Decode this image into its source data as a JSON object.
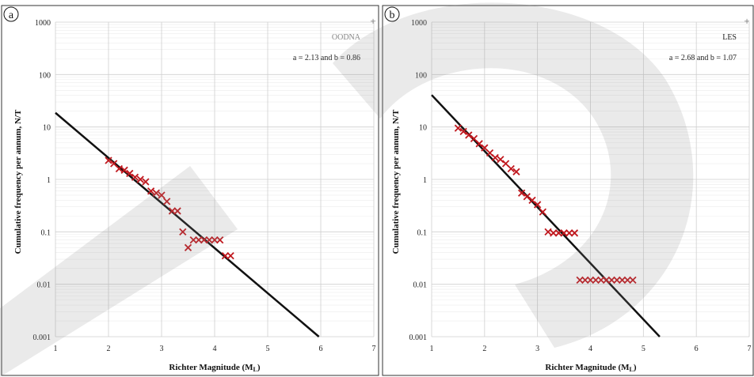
{
  "chart_data": [
    {
      "type": "scatter",
      "panel_label": "a",
      "site_label": "OODNA",
      "equation": "a = 2.13 and b = 0.86",
      "xlabel_main": "Richter Magnitude (M",
      "xlabel_sub": "L",
      "xlabel_end": ")",
      "ylabel": "Cumulative frequency per annum, N/T",
      "xlim": [
        1,
        7
      ],
      "ylim": [
        0.001,
        1000
      ],
      "yscale": "log",
      "x_ticks": [
        "1",
        "2",
        "3",
        "4",
        "5",
        "6",
        "7"
      ],
      "y_ticks": [
        "0.001",
        "0.01",
        "0.1",
        "1",
        "10",
        "100",
        "1000"
      ],
      "grid": true,
      "points_color": "#c0181e",
      "line_color": "#111111",
      "fit_line": {
        "a": 2.13,
        "b": 0.86
      },
      "points": [
        {
          "x": 2.0,
          "y": 2.3
        },
        {
          "x": 2.1,
          "y": 2.0
        },
        {
          "x": 2.2,
          "y": 1.6
        },
        {
          "x": 2.3,
          "y": 1.5
        },
        {
          "x": 2.4,
          "y": 1.3
        },
        {
          "x": 2.5,
          "y": 1.1
        },
        {
          "x": 2.6,
          "y": 1.0
        },
        {
          "x": 2.7,
          "y": 0.9
        },
        {
          "x": 2.8,
          "y": 0.6
        },
        {
          "x": 2.9,
          "y": 0.55
        },
        {
          "x": 3.0,
          "y": 0.5
        },
        {
          "x": 3.1,
          "y": 0.38
        },
        {
          "x": 3.2,
          "y": 0.25
        },
        {
          "x": 3.3,
          "y": 0.25
        },
        {
          "x": 3.4,
          "y": 0.1
        },
        {
          "x": 3.5,
          "y": 0.05
        },
        {
          "x": 3.6,
          "y": 0.07
        },
        {
          "x": 3.7,
          "y": 0.07
        },
        {
          "x": 3.8,
          "y": 0.07
        },
        {
          "x": 3.9,
          "y": 0.07
        },
        {
          "x": 4.0,
          "y": 0.07
        },
        {
          "x": 4.1,
          "y": 0.07
        },
        {
          "x": 4.2,
          "y": 0.035
        },
        {
          "x": 4.3,
          "y": 0.035
        }
      ]
    },
    {
      "type": "scatter",
      "panel_label": "b",
      "site_label": "LES",
      "equation": "a = 2.68 and b = 1.07",
      "xlabel_main": "Richter Magnitude (M",
      "xlabel_sub": "L",
      "xlabel_end": ")",
      "ylabel": "Cumulative frequency per annum, N/T",
      "xlim": [
        1,
        7
      ],
      "ylim": [
        0.001,
        1000
      ],
      "yscale": "log",
      "x_ticks": [
        "1",
        "2",
        "3",
        "4",
        "5",
        "6",
        "7"
      ],
      "y_ticks": [
        "0.001",
        "0.01",
        "0.1",
        "1",
        "10",
        "100",
        "1000"
      ],
      "grid": true,
      "points_color": "#c0181e",
      "line_color": "#111111",
      "fit_line": {
        "a": 2.68,
        "b": 1.07
      },
      "points": [
        {
          "x": 1.5,
          "y": 9.5
        },
        {
          "x": 1.6,
          "y": 8.2
        },
        {
          "x": 1.7,
          "y": 7.0
        },
        {
          "x": 1.8,
          "y": 6.0
        },
        {
          "x": 1.9,
          "y": 4.8
        },
        {
          "x": 2.0,
          "y": 4.0
        },
        {
          "x": 2.1,
          "y": 3.2
        },
        {
          "x": 2.2,
          "y": 2.6
        },
        {
          "x": 2.3,
          "y": 2.4
        },
        {
          "x": 2.4,
          "y": 2.0
        },
        {
          "x": 2.5,
          "y": 1.6
        },
        {
          "x": 2.6,
          "y": 1.4
        },
        {
          "x": 2.7,
          "y": 0.55
        },
        {
          "x": 2.8,
          "y": 0.47
        },
        {
          "x": 2.9,
          "y": 0.4
        },
        {
          "x": 3.0,
          "y": 0.33
        },
        {
          "x": 3.1,
          "y": 0.24
        },
        {
          "x": 3.2,
          "y": 0.1
        },
        {
          "x": 3.3,
          "y": 0.095
        },
        {
          "x": 3.4,
          "y": 0.095
        },
        {
          "x": 3.5,
          "y": 0.095
        },
        {
          "x": 3.6,
          "y": 0.095
        },
        {
          "x": 3.7,
          "y": 0.095
        },
        {
          "x": 3.8,
          "y": 0.012
        },
        {
          "x": 3.9,
          "y": 0.012
        },
        {
          "x": 4.0,
          "y": 0.012
        },
        {
          "x": 4.1,
          "y": 0.012
        },
        {
          "x": 4.2,
          "y": 0.012
        },
        {
          "x": 4.3,
          "y": 0.012
        },
        {
          "x": 4.4,
          "y": 0.012
        },
        {
          "x": 4.5,
          "y": 0.012
        },
        {
          "x": 4.6,
          "y": 0.012
        },
        {
          "x": 4.7,
          "y": 0.012
        },
        {
          "x": 4.8,
          "y": 0.012
        }
      ]
    }
  ]
}
